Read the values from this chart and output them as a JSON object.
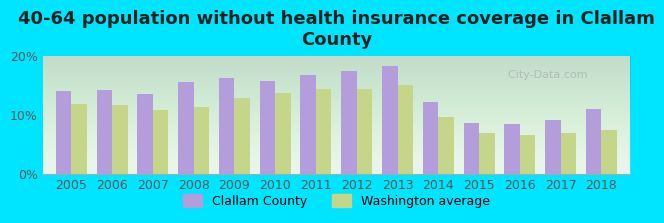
{
  "title": "40-64 population without health insurance coverage in Clallam\nCounty",
  "years": [
    2005,
    2006,
    2007,
    2008,
    2009,
    2010,
    2011,
    2012,
    2013,
    2014,
    2015,
    2016,
    2017,
    2018
  ],
  "clallam": [
    14.0,
    14.2,
    13.5,
    15.5,
    16.2,
    15.8,
    16.8,
    17.4,
    18.2,
    12.2,
    8.7,
    8.4,
    9.2,
    11.0
  ],
  "washington": [
    11.8,
    11.6,
    10.8,
    11.3,
    12.8,
    13.7,
    14.3,
    14.4,
    15.0,
    9.6,
    7.0,
    6.6,
    6.9,
    7.4
  ],
  "clallam_color": "#b39ddb",
  "washington_color": "#c5d68a",
  "background_outer": "#00e5ff",
  "background_inner_top": "#e8f5e9",
  "background_inner_bottom": "#ffffff",
  "title_color": "#212121",
  "axis_label_color": "#555555",
  "ylim": [
    0,
    20
  ],
  "yticks": [
    0,
    10,
    20
  ],
  "ytick_labels": [
    "0%",
    "10%",
    "20%"
  ],
  "legend_clallam": "Clallam County",
  "legend_washington": "Washington average",
  "bar_width": 0.38,
  "title_fontsize": 13,
  "tick_fontsize": 9,
  "legend_fontsize": 9
}
